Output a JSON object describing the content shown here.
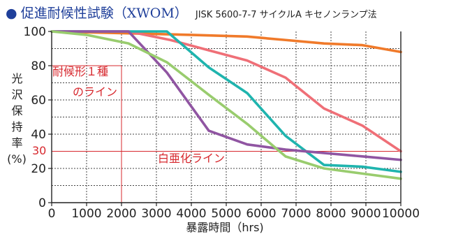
{
  "title": {
    "bullet": "●",
    "main": "促進耐候性試験（XWOM）",
    "sub": "JISK 5600-7-7 サイクルA キセノンランプ法"
  },
  "chart_data": {
    "type": "line",
    "xlabel": "暴露時間（hrs)",
    "ylabel": "光沢保持率(%)",
    "ylabel_lines": [
      "光",
      "沢",
      "保",
      "持",
      "率",
      "(%)"
    ],
    "xlim": [
      0,
      10000
    ],
    "ylim": [
      0,
      100
    ],
    "xticks": [
      0,
      1000,
      2000,
      3000,
      4000,
      5000,
      6000,
      7000,
      8000,
      9000,
      10000
    ],
    "yticks": [
      0,
      20,
      40,
      60,
      80,
      100
    ],
    "grid": true,
    "series": [
      {
        "color": "#f07a2a",
        "x": [
          0,
          2000,
          4000,
          5600,
          6700,
          7800,
          8900,
          10000
        ],
        "y": [
          100,
          99,
          98,
          97,
          95,
          93,
          92,
          88
        ]
      },
      {
        "color": "#ef6f77",
        "x": [
          0,
          2200,
          3400,
          4500,
          5600,
          6700,
          7800,
          8900,
          10000
        ],
        "y": [
          100,
          100,
          95,
          89,
          83,
          73,
          55,
          45,
          30
        ]
      },
      {
        "color": "#1fb4ae",
        "x": [
          0,
          2200,
          3300,
          4500,
          5600,
          6700,
          7800,
          8900,
          10000
        ],
        "y": [
          100,
          100,
          100,
          79,
          64,
          39,
          22,
          21,
          18
        ]
      },
      {
        "color": "#9055a2",
        "x": [
          0,
          2200,
          3300,
          4500,
          5600,
          6700,
          7800,
          8900,
          10000
        ],
        "y": [
          100,
          100,
          76,
          42,
          34,
          31,
          29,
          27,
          25
        ]
      },
      {
        "color": "#99cc6e",
        "x": [
          0,
          1000,
          2200,
          3300,
          4500,
          5600,
          6700,
          7800,
          8900,
          10000
        ],
        "y": [
          100,
          98,
          93,
          82,
          63,
          46,
          27,
          20,
          17,
          14
        ]
      }
    ],
    "annotations": {
      "red_color": "#d7282e",
      "weather_label_line1": "耐候形１種",
      "weather_label_line2": "のライン",
      "weather_vertical_x": 2000,
      "weather_horizontal_y": 80,
      "chalk_label": "白亜化ライン",
      "chalk_y": 30,
      "chalk_tick_label": "30"
    }
  }
}
